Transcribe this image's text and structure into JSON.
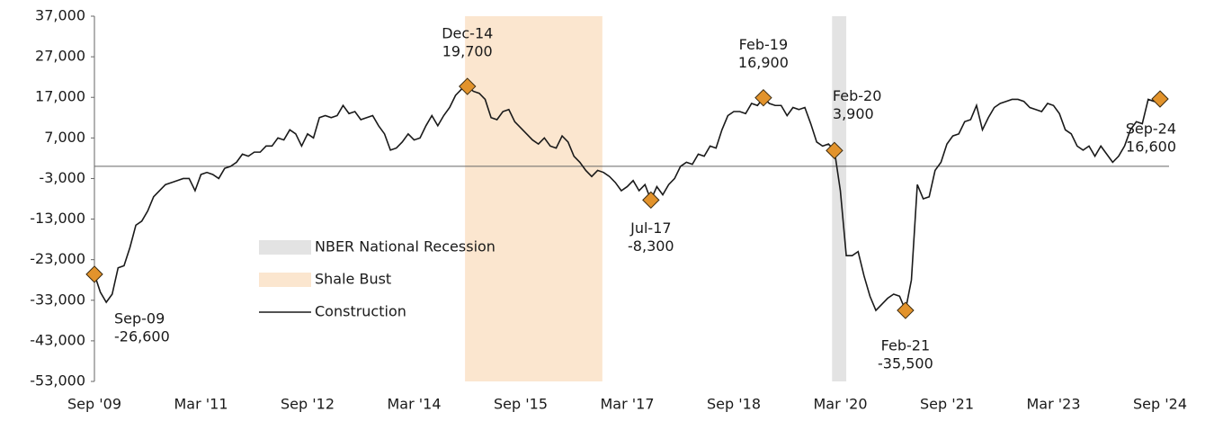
{
  "chart_data": {
    "type": "line",
    "categories": [
      "Sep '09",
      null,
      null,
      null,
      null,
      null,
      null,
      null,
      null,
      null,
      null,
      null,
      null,
      null,
      null,
      null,
      null,
      null,
      "Mar '11",
      null,
      null,
      null,
      null,
      null,
      null,
      null,
      null,
      null,
      null,
      null,
      null,
      null,
      null,
      null,
      null,
      null,
      "Sep '12",
      null,
      null,
      null,
      null,
      null,
      null,
      null,
      null,
      null,
      null,
      null,
      null,
      null,
      null,
      null,
      null,
      null,
      "Mar '14",
      null,
      null,
      null,
      null,
      null,
      null,
      null,
      null,
      null,
      null,
      null,
      null,
      null,
      null,
      null,
      null,
      null,
      "Sep '15",
      null,
      null,
      null,
      null,
      null,
      null,
      null,
      null,
      null,
      null,
      null,
      null,
      null,
      null,
      null,
      null,
      null,
      "Mar '17",
      null,
      null,
      null,
      null,
      null,
      null,
      null,
      null,
      null,
      null,
      null,
      null,
      null,
      null,
      null,
      null,
      null,
      "Sep '18",
      null,
      null,
      null,
      null,
      null,
      null,
      null,
      null,
      null,
      null,
      null,
      null,
      null,
      null,
      null,
      null,
      null,
      "Mar '20",
      null,
      null,
      null,
      null,
      null,
      null,
      null,
      null,
      null,
      null,
      null,
      null,
      null,
      null,
      null,
      null,
      null,
      "Sep '21",
      null,
      null,
      null,
      null,
      null,
      null,
      null,
      null,
      null,
      null,
      null,
      null,
      null,
      null,
      null,
      null,
      null,
      "Mar '23",
      null,
      null,
      null,
      null,
      null,
      null,
      null,
      null,
      null,
      null,
      null,
      null,
      null,
      null,
      null,
      null,
      null,
      "Sep '24"
    ],
    "series": [
      {
        "name": "Construction",
        "color": "#1a1a1a",
        "values": [
          -26600,
          -31000,
          -33500,
          -31500,
          -25000,
          -24500,
          -20000,
          -14500,
          -13500,
          -11000,
          -7500,
          -6000,
          -4500,
          -4000,
          -3500,
          -3000,
          -3000,
          -6000,
          -2000,
          -1500,
          -2000,
          -3000,
          -500,
          0,
          1000,
          3000,
          2500,
          3500,
          3500,
          5000,
          5000,
          7000,
          6500,
          9000,
          8000,
          5000,
          8000,
          7000,
          12000,
          12500,
          12000,
          12500,
          15000,
          13000,
          13500,
          11500,
          12000,
          12500,
          10000,
          8000,
          4000,
          4500,
          6000,
          8000,
          6500,
          7000,
          10000,
          12500,
          10000,
          12500,
          14500,
          17500,
          19000,
          19700,
          18500,
          18000,
          16500,
          12000,
          11500,
          13500,
          14000,
          11000,
          9500,
          8000,
          6500,
          5500,
          7000,
          5000,
          4500,
          7500,
          6000,
          2500,
          1000,
          -1000,
          -2500,
          -1000,
          -1500,
          -2500,
          -4000,
          -6000,
          -5000,
          -3500,
          -6000,
          -4500,
          -8300,
          -5000,
          -7000,
          -4500,
          -3000,
          0,
          1000,
          500,
          3000,
          2500,
          5000,
          4500,
          9000,
          12500,
          13500,
          13500,
          13000,
          15500,
          15000,
          16900,
          15500,
          15000,
          15000,
          12500,
          14500,
          14000,
          14500,
          10500,
          6000,
          5000,
          5500,
          3900,
          -6000,
          -22000,
          -22000,
          -21000,
          -27000,
          -32000,
          -35500,
          -34000,
          -32500,
          -31500,
          -32000,
          -35500,
          -28000,
          -4500,
          -8000,
          -7500,
          -1000,
          1000,
          5500,
          7500,
          8000,
          11000,
          11500,
          15000,
          9000,
          12000,
          14500,
          15500,
          16000,
          16500,
          16500,
          16000,
          14500,
          14000,
          13500,
          15500,
          15000,
          13000,
          9000,
          8000,
          5000,
          4000,
          5000,
          2500,
          5000,
          3000,
          1000,
          2500,
          5000,
          9000,
          11000,
          10500,
          16500,
          16000,
          16600
        ],
        "point_labels": [
          "Sep-09",
          null,
          null,
          null,
          null,
          null,
          null,
          null,
          null,
          null,
          null,
          null,
          null,
          null,
          null,
          null,
          null,
          null,
          null,
          null,
          null,
          null,
          null,
          null,
          null,
          null,
          null,
          null,
          null,
          null,
          null,
          null,
          null,
          null,
          null,
          null,
          null,
          null,
          null,
          null,
          null,
          null,
          null,
          null,
          null,
          null,
          null,
          null,
          null,
          null,
          null,
          null,
          null,
          null,
          null,
          null,
          null,
          null,
          null,
          null,
          null,
          null,
          null,
          "Dec-14",
          null,
          null,
          null,
          null,
          null,
          null,
          null,
          null,
          null,
          null,
          null,
          null,
          null,
          null,
          null,
          null,
          null,
          null,
          null,
          null,
          null,
          null,
          null,
          null,
          null,
          null,
          null,
          null,
          null,
          null,
          "Jul-17",
          null,
          null,
          null,
          null,
          null,
          null,
          null,
          null,
          null,
          null,
          null,
          null,
          null,
          null,
          null,
          null,
          null,
          null,
          "Feb-19",
          null,
          null,
          null,
          null,
          null,
          null,
          null,
          null,
          null,
          null,
          null,
          "Feb-20",
          null,
          null,
          null,
          null,
          null,
          null,
          null,
          null,
          null,
          null,
          null,
          "Feb-21",
          null,
          null,
          null,
          null,
          null,
          null,
          null,
          null,
          null,
          null,
          null,
          null,
          null,
          null,
          null,
          null,
          null,
          null,
          null,
          null,
          null,
          null,
          null,
          null,
          null,
          null,
          null,
          null,
          null,
          null,
          null,
          null,
          null,
          null,
          null,
          null,
          null,
          null,
          null,
          null,
          null,
          null,
          "Sep-24"
        ],
        "value_labels": [
          "-26,600",
          null,
          null,
          null,
          null,
          null,
          null,
          null,
          null,
          null,
          null,
          null,
          null,
          null,
          null,
          null,
          null,
          null,
          null,
          null,
          null,
          null,
          null,
          null,
          null,
          null,
          null,
          null,
          null,
          null,
          null,
          null,
          null,
          null,
          null,
          null,
          null,
          null,
          null,
          null,
          null,
          null,
          null,
          null,
          null,
          null,
          null,
          null,
          null,
          null,
          null,
          null,
          null,
          null,
          null,
          null,
          null,
          null,
          null,
          null,
          null,
          null,
          null,
          "19,700",
          null,
          null,
          null,
          null,
          null,
          null,
          null,
          null,
          null,
          null,
          null,
          null,
          null,
          null,
          null,
          null,
          null,
          null,
          null,
          null,
          null,
          null,
          null,
          null,
          null,
          null,
          null,
          null,
          null,
          null,
          "-8,300",
          null,
          null,
          null,
          null,
          null,
          null,
          null,
          null,
          null,
          null,
          null,
          null,
          null,
          null,
          null,
          null,
          null,
          null,
          "16,900",
          null,
          null,
          null,
          null,
          null,
          null,
          null,
          null,
          null,
          null,
          null,
          "3,900",
          null,
          null,
          null,
          null,
          null,
          null,
          null,
          null,
          null,
          null,
          null,
          "-35,500",
          null,
          null,
          null,
          null,
          null,
          null,
          null,
          null,
          null,
          null,
          null,
          null,
          null,
          null,
          null,
          null,
          null,
          null,
          null,
          null,
          null,
          null,
          null,
          null,
          null,
          null,
          null,
          null,
          null,
          null,
          null,
          null,
          null,
          null,
          null,
          null,
          null,
          null,
          null,
          null,
          null,
          null,
          "16,600"
        ]
      }
    ],
    "shaded": [
      {
        "name": "NBER National Recession",
        "color": "#e3e3e3",
        "span": [
          124.6,
          127
        ]
      },
      {
        "name": "Shale Bust",
        "color": "#fbe6cf",
        "span": [
          62.6,
          85.8
        ]
      }
    ],
    "marker_color": "#e2932c",
    "ylim": [
      -53000,
      37000
    ],
    "yticks": [
      {
        "value": -53000,
        "label": "-53,000"
      },
      {
        "value": -43000,
        "label": "-43,000"
      },
      {
        "value": -33000,
        "label": "-33,000"
      },
      {
        "value": -23000,
        "label": "-23,000"
      },
      {
        "value": -13000,
        "label": "-13,000"
      },
      {
        "value": -3000,
        "label": "-3,000"
      },
      {
        "value": 7000,
        "label": "7,000"
      },
      {
        "value": 17000,
        "label": "17,000"
      },
      {
        "value": 27000,
        "label": "27,000"
      },
      {
        "value": 37000,
        "label": "37,000"
      }
    ]
  }
}
